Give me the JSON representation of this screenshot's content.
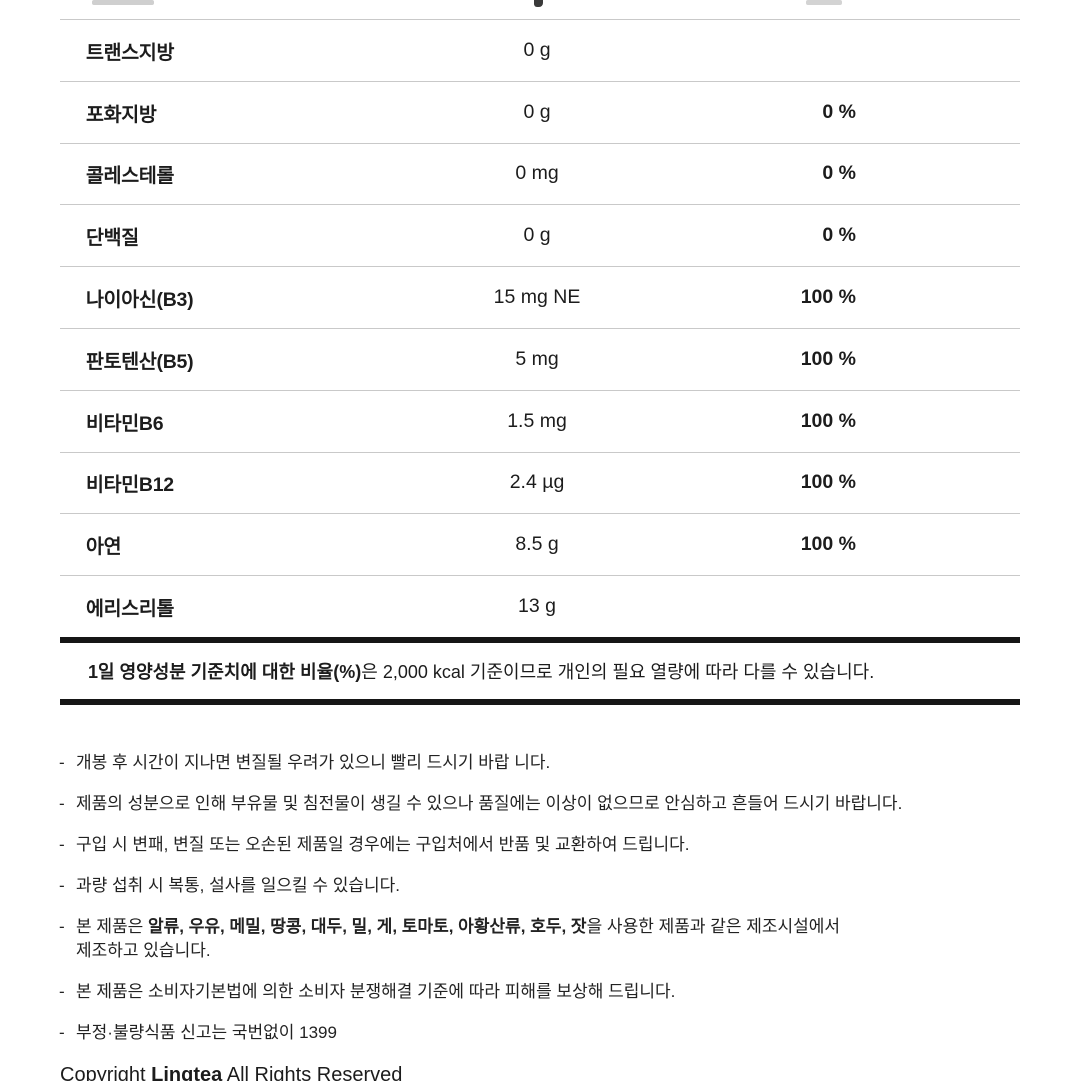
{
  "colors": {
    "divider": "#c9c9c9",
    "thick_rule": "#161616",
    "text": "#1c1c1c"
  },
  "nutrition_table": {
    "rows": [
      {
        "name": "트랜스지방",
        "amount": "0 g",
        "daily_percent": ""
      },
      {
        "name": "포화지방",
        "amount": "0 g",
        "daily_percent": "0 %"
      },
      {
        "name": "콜레스테롤",
        "amount": "0 mg",
        "daily_percent": "0 %"
      },
      {
        "name": "단백질",
        "amount": "0 g",
        "daily_percent": "0 %"
      },
      {
        "name": "나이아신(B3)",
        "amount": "15 mg NE",
        "daily_percent": "100 %"
      },
      {
        "name": "판토텐산(B5)",
        "amount": "5 mg",
        "daily_percent": "100 %"
      },
      {
        "name": "비타민B6",
        "amount": "1.5 mg",
        "daily_percent": "100 %"
      },
      {
        "name": "비타민B12",
        "amount": "2.4 µg",
        "daily_percent": "100 %"
      },
      {
        "name": "아연",
        "amount": "8.5 g",
        "daily_percent": "100 %"
      },
      {
        "name": "에리스리톨",
        "amount": "13 g",
        "daily_percent": ""
      }
    ],
    "footnote": {
      "bold": "1일 영양성분 기준치에 대한 비율(%)",
      "regular": "은 2,000 kcal 기준이므로 개인의 필요 열량에 따라 다를 수 있습니다."
    }
  },
  "notes": {
    "dash": "-",
    "items": [
      {
        "segments": [
          {
            "text": "개봉 후 시간이 지나면 변질될 우려가 있으니 빨리 드시기 바랍 니다.",
            "bold": false
          }
        ]
      },
      {
        "segments": [
          {
            "text": "제품의 성분으로 인해 부유물 및 침전물이 생길 수 있으나 품질에는 이상이 없으므로 안심하고 흔들어 드시기 바랍니다.",
            "bold": false
          }
        ]
      },
      {
        "segments": [
          {
            "text": "구입 시 변패, 변질 또는 오손된 제품일 경우에는 구입처에서 반품 및 교환하여 드립니다.",
            "bold": false
          }
        ]
      },
      {
        "segments": [
          {
            "text": "과량 섭취 시 복통, 설사를 일으킬 수 있습니다.",
            "bold": false
          }
        ]
      },
      {
        "segments": [
          {
            "text": "본 제품은 ",
            "bold": false
          },
          {
            "text": "알류, 우유, 메밀, 땅콩, 대두, 밀, 게, 토마토, 아황산류, 호두, 잣",
            "bold": true
          },
          {
            "text": "을 사용한 제품과 같은 제조시설에서",
            "bold": false
          },
          {
            "break": true
          },
          {
            "text": "제조하고 있습니다.",
            "bold": false
          }
        ]
      },
      {
        "segments": [
          {
            "text": "본 제품은 소비자기본법에 의한 소비자 분쟁해결 기준에 따라 피해를 보상해 드립니다.",
            "bold": false
          }
        ]
      },
      {
        "segments": [
          {
            "text": "부정·불량식품 신고는 국번없이 1399",
            "bold": false
          }
        ]
      }
    ]
  },
  "copyright": {
    "prefix": "Copyright ",
    "brand": "Lingtea",
    "suffix": "  All Rights Reserved"
  }
}
